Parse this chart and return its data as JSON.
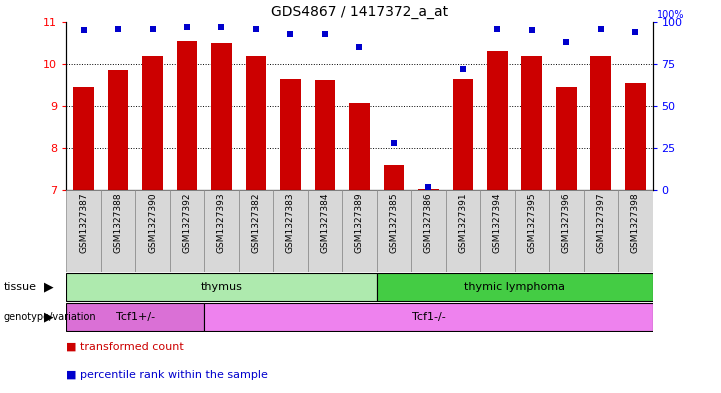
{
  "title": "GDS4867 / 1417372_a_at",
  "samples": [
    "GSM1327387",
    "GSM1327388",
    "GSM1327390",
    "GSM1327392",
    "GSM1327393",
    "GSM1327382",
    "GSM1327383",
    "GSM1327384",
    "GSM1327389",
    "GSM1327385",
    "GSM1327386",
    "GSM1327391",
    "GSM1327394",
    "GSM1327395",
    "GSM1327396",
    "GSM1327397",
    "GSM1327398"
  ],
  "transformed_count": [
    9.45,
    9.85,
    10.18,
    10.55,
    10.5,
    10.2,
    9.65,
    9.62,
    9.08,
    7.6,
    7.02,
    9.65,
    10.3,
    10.18,
    9.45,
    10.2,
    9.55
  ],
  "percentile_rank": [
    95,
    96,
    96,
    97,
    97,
    96,
    93,
    93,
    85,
    28,
    2,
    72,
    96,
    95,
    88,
    96,
    94
  ],
  "tissue_groups": [
    {
      "label": "thymus",
      "start": 0,
      "end": 9,
      "color": "#aeeaae"
    },
    {
      "label": "thymic lymphoma",
      "start": 9,
      "end": 17,
      "color": "#44cc44"
    }
  ],
  "genotype_groups": [
    {
      "label": "Tcf1+/-",
      "start": 0,
      "end": 4,
      "color": "#da70d6"
    },
    {
      "label": "Tcf1-/-",
      "start": 4,
      "end": 17,
      "color": "#ee82ee"
    }
  ],
  "ylim_left": [
    7,
    11
  ],
  "ylim_right": [
    0,
    100
  ],
  "yticks_left": [
    7,
    8,
    9,
    10,
    11
  ],
  "yticks_right": [
    0,
    25,
    50,
    75,
    100
  ],
  "bar_color": "#cc0000",
  "dot_color": "#0000cc",
  "bar_width": 0.6,
  "legend_items": [
    {
      "label": "transformed count",
      "color": "#cc0000"
    },
    {
      "label": "percentile rank within the sample",
      "color": "#0000cc"
    }
  ],
  "cell_bg": "#d8d8d8",
  "cell_border": "#888888"
}
